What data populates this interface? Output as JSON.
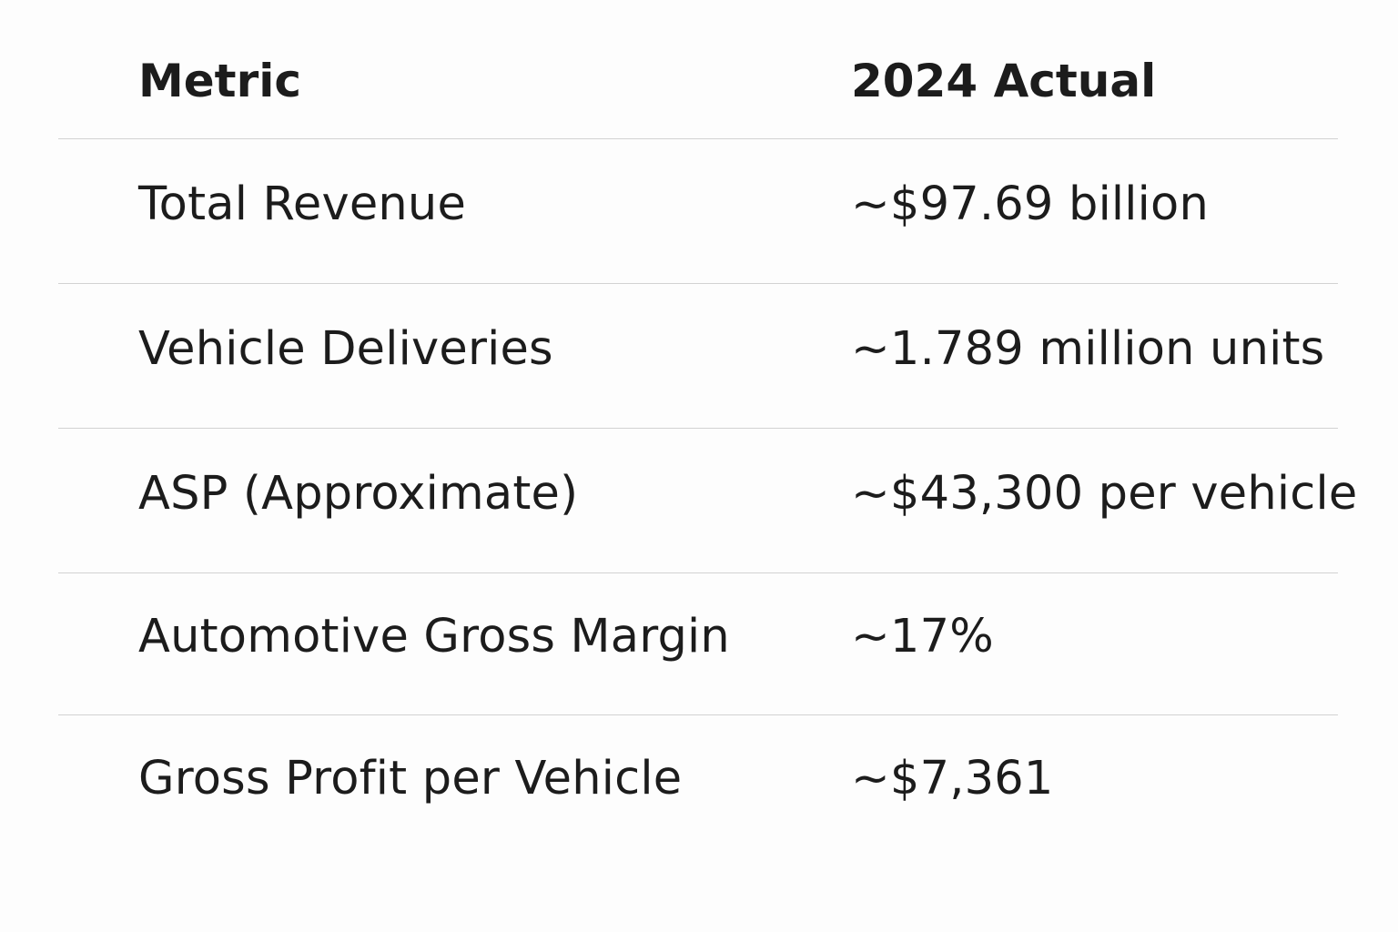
{
  "table": {
    "headers": {
      "metric": "Metric",
      "value": "2024 Actual"
    },
    "rows": [
      {
        "metric": "Total Revenue",
        "value": "~$97.69 billion"
      },
      {
        "metric": "Vehicle Deliveries",
        "value": "~1.789 million units"
      },
      {
        "metric": "ASP (Approximate)",
        "value": "~$43,300 per vehicle"
      },
      {
        "metric": "Automotive Gross Margin",
        "value": "~17%"
      },
      {
        "metric": "Gross Profit per Vehicle",
        "value": "~$7,361"
      }
    ]
  },
  "colors": {
    "background": "#fdfdfd",
    "text": "#1c1c1c",
    "divider": "#d2d2d2"
  }
}
